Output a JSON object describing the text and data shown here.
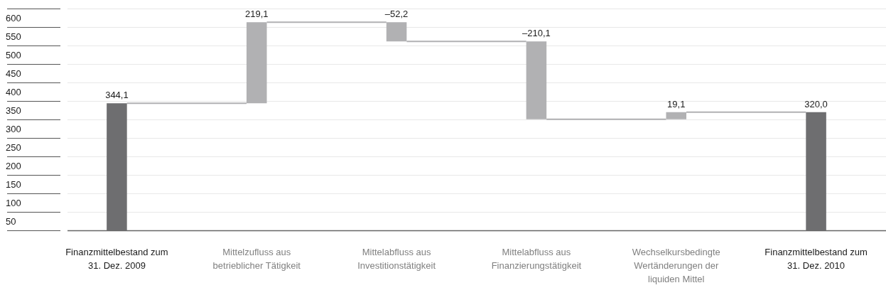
{
  "chart_data": {
    "type": "bar",
    "categories": [
      "Finanzmittelbestand zum 31. Dez. 2009",
      "Mittelzufluss aus betrieblicher Tätigkeit",
      "Mittelabfluss aus Investitionstätigkeit",
      "Mittelabfluss aus Finanzierungstätigkeit",
      "Wechselkursbedingte Wertänderungen der liquiden Mittel",
      "Finanzmittelbestand zum 31. Dez. 2010"
    ],
    "values": [
      344.1,
      219.1,
      -52.2,
      -210.1,
      19.1,
      320.0
    ],
    "base": [
      0,
      344.1,
      563.2,
      511.0,
      300.9,
      0
    ],
    "colors": [
      "#6e6e70",
      "#b1b1b3",
      "#b1b1b3",
      "#b1b1b3",
      "#b1b1b3",
      "#6e6e70"
    ],
    "value_labels": [
      "344,1",
      "219,1",
      "–52,2",
      "–210,1",
      "19,1",
      "320,0"
    ],
    "ylim": [
      0,
      600
    ],
    "yticks": [
      {
        "value": 0,
        "label": null
      },
      50,
      100,
      150,
      200,
      250,
      300,
      350,
      400,
      450,
      500,
      550,
      600
    ],
    "grid": "y",
    "legend": false
  }
}
